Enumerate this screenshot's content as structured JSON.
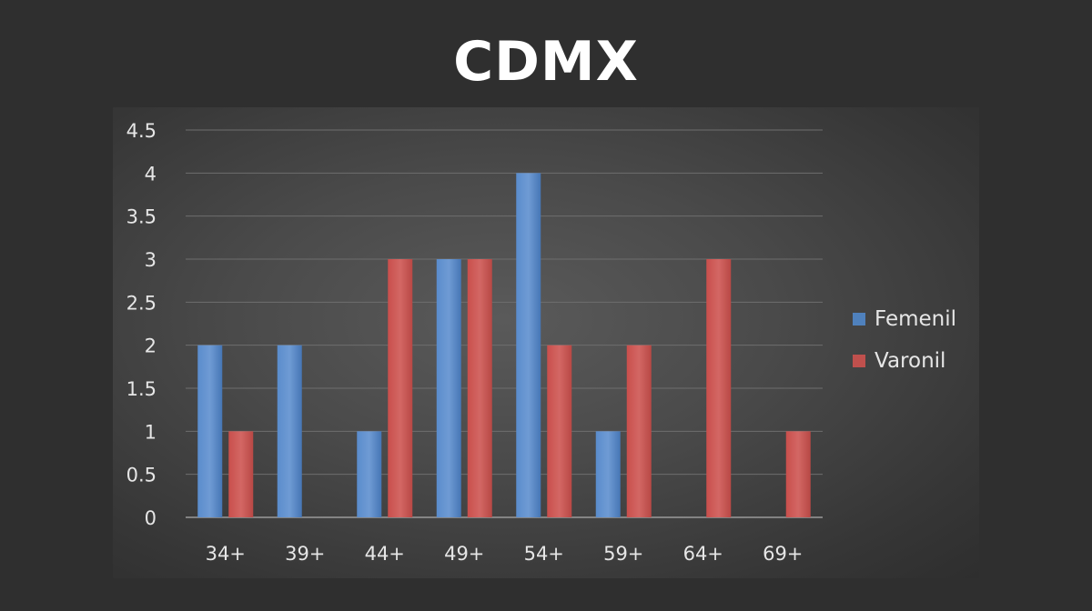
{
  "title": "CDMX",
  "chart_data": {
    "type": "bar",
    "title": "CDMX",
    "categories": [
      "34+",
      "39+",
      "44+",
      "49+",
      "54+",
      "59+",
      "64+",
      "69+"
    ],
    "series": [
      {
        "name": "Femenil",
        "values": [
          2,
          2,
          1,
          3,
          4,
          1,
          0,
          0
        ],
        "color": "#4f81bd"
      },
      {
        "name": "Varonil",
        "values": [
          1,
          0,
          3,
          3,
          2,
          2,
          3,
          1
        ],
        "color": "#c0504d"
      }
    ],
    "yticks": [
      "0",
      "0.5",
      "1",
      "1.5",
      "2",
      "2.5",
      "3",
      "3.5",
      "4",
      "4.5"
    ],
    "ylim": [
      0,
      4.5
    ],
    "grid": true,
    "legend": "right"
  }
}
